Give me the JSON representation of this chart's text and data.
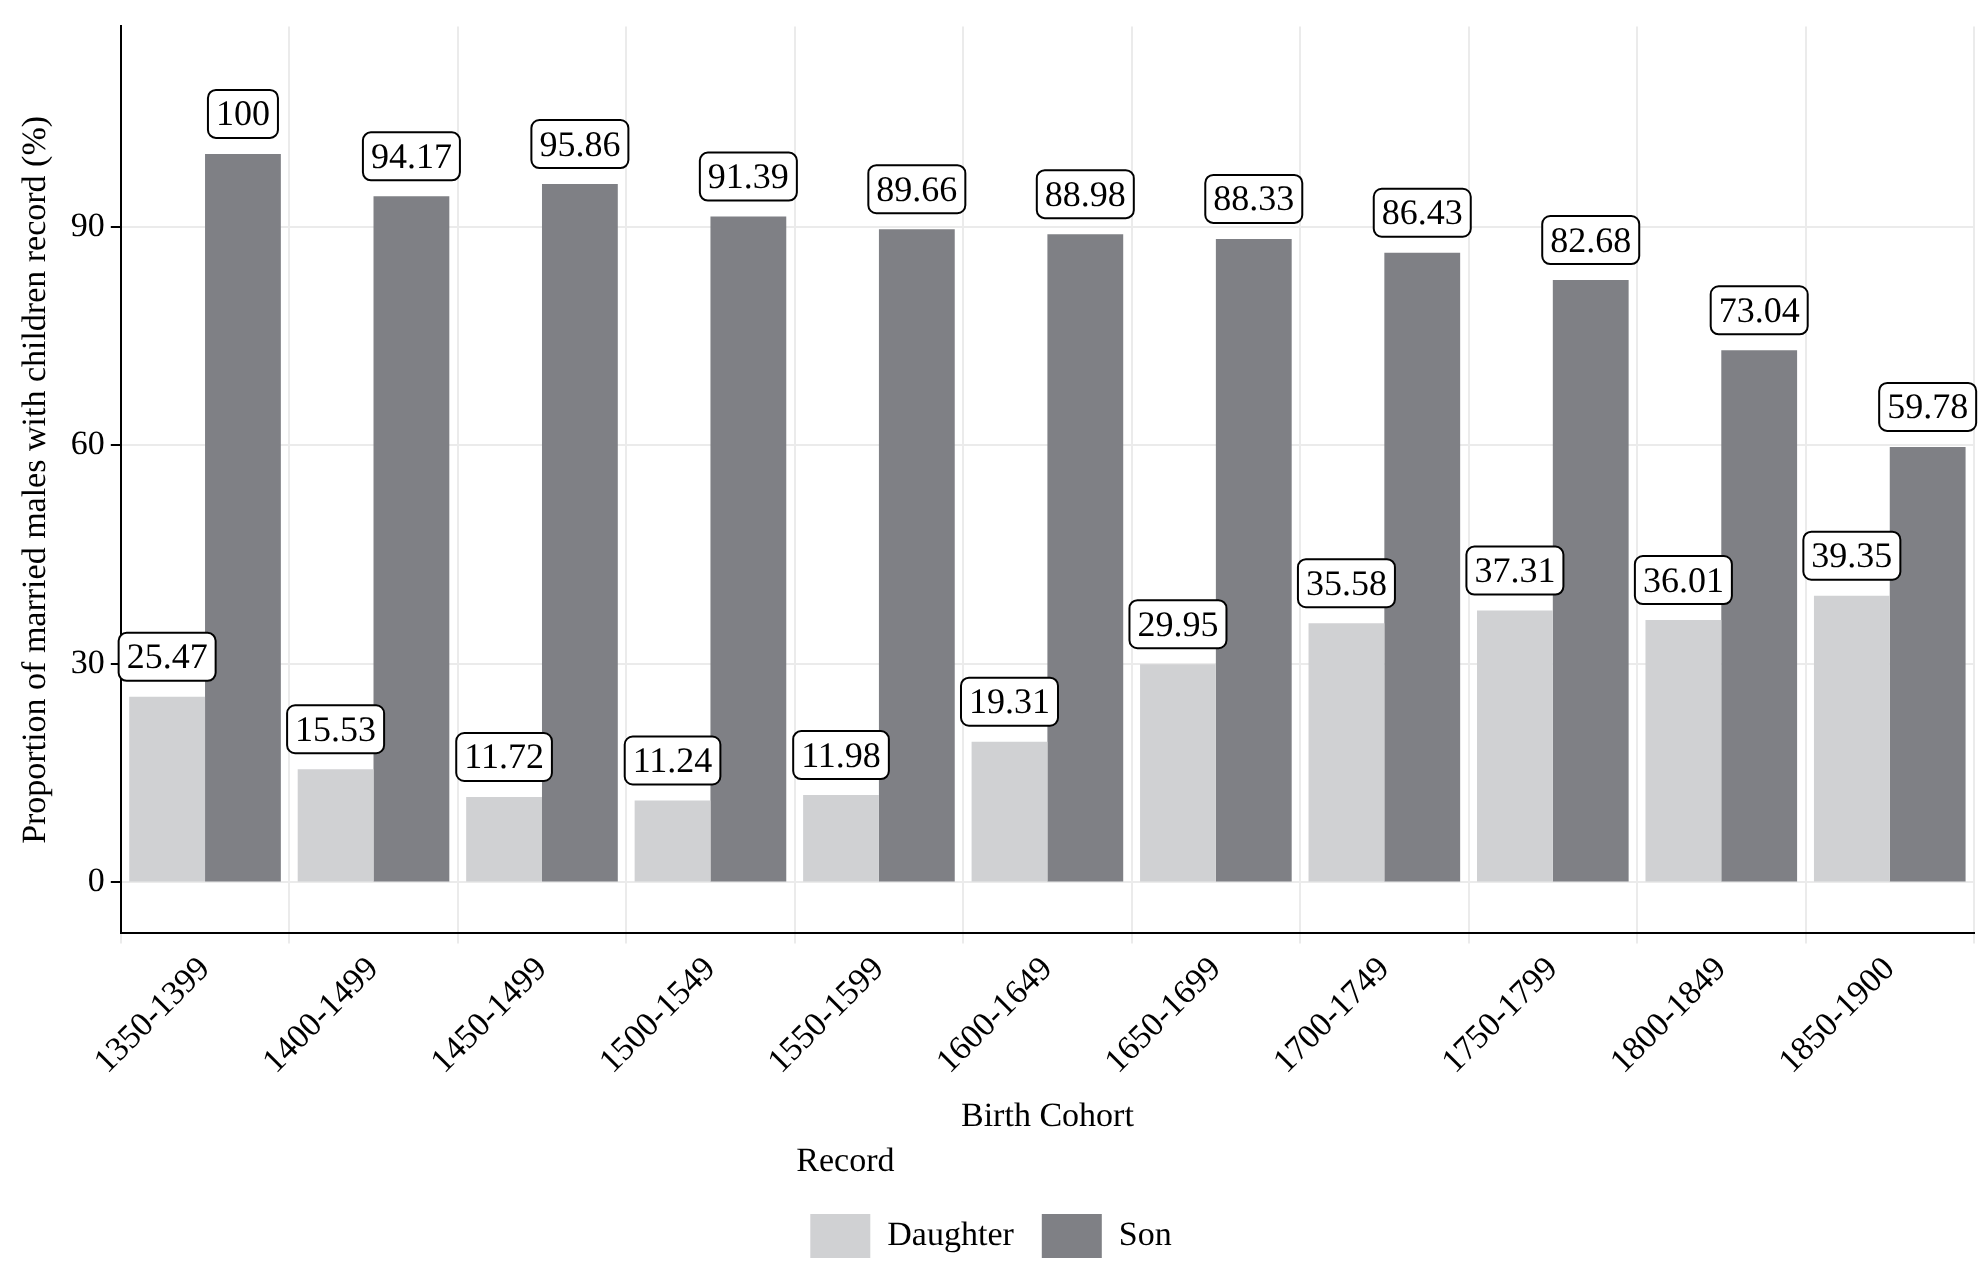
{
  "chart_data": {
    "type": "bar",
    "xlabel": "Birth Cohort",
    "ylabel": "Proportion of married males with children record (%)",
    "legend_title": "Record",
    "categories": [
      "1350-1399",
      "1400-1499",
      "1450-1499",
      "1500-1549",
      "1550-1599",
      "1600-1649",
      "1650-1699",
      "1700-1749",
      "1750-1799",
      "1800-1849",
      "1850-1900"
    ],
    "series": [
      {
        "name": "Daughter",
        "color": "#d0d1d3",
        "values": [
          25.47,
          15.53,
          11.72,
          11.24,
          11.98,
          19.31,
          29.95,
          35.58,
          37.31,
          36.01,
          39.35
        ]
      },
      {
        "name": "Son",
        "color": "#7f8085",
        "values": [
          100,
          94.17,
          95.86,
          91.39,
          89.66,
          88.98,
          88.33,
          86.43,
          82.68,
          73.04,
          59.78
        ]
      }
    ],
    "ylim": [
      -7,
      117.5
    ],
    "yticks": [
      0,
      30,
      60,
      90
    ],
    "grid": true,
    "legend": "bottom",
    "data_labels": true
  }
}
